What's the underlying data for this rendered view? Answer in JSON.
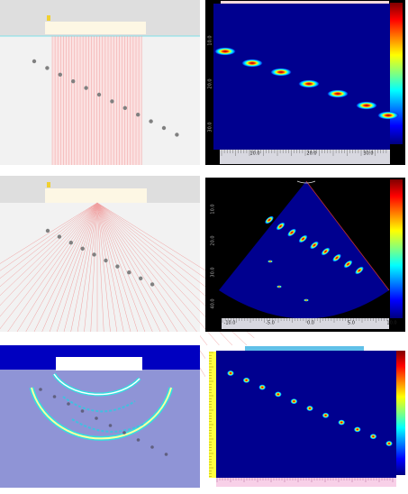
{
  "panels": [
    {
      "x_ticks": [
        "10.0",
        "20.0",
        "30.0"
      ],
      "y_ticks": [
        "10.0",
        "20.0",
        "30.0"
      ]
    },
    {
      "x_ticks": [
        "-10.0",
        "-5.0",
        "0.0",
        "5.0",
        "10.0"
      ],
      "y_ticks": [
        "10.0",
        "20.0",
        "30.0",
        "40.0"
      ]
    }
  ]
}
